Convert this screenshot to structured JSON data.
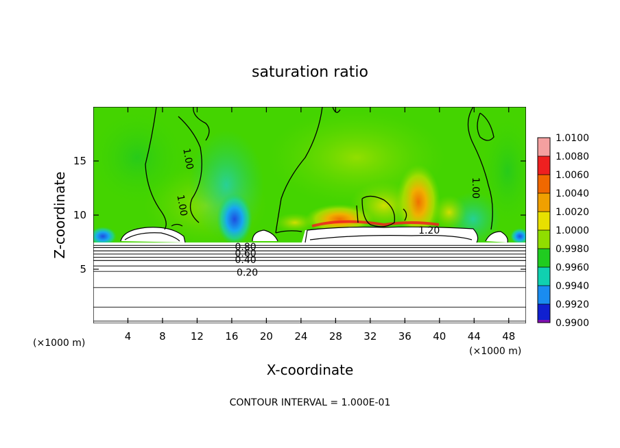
{
  "chart_data": {
    "type": "heatmap",
    "title": "saturation ratio",
    "xlabel": "X-coordinate",
    "ylabel": "Z-coordinate",
    "x_unit_left": "(×1000 m)",
    "x_unit_right": "(×1000 m)",
    "footer": "CONTOUR INTERVAL = 1.000E-01",
    "xlim": [
      0,
      50
    ],
    "ylim": [
      0,
      20
    ],
    "x_ticks": [
      4,
      8,
      12,
      16,
      20,
      24,
      28,
      32,
      36,
      40,
      44,
      48
    ],
    "y_ticks": [
      5,
      10,
      15
    ],
    "colorbar": {
      "labels": [
        "1.0100",
        "1.0080",
        "1.0060",
        "1.0040",
        "1.0020",
        "1.0000",
        "0.9980",
        "0.9960",
        "0.9940",
        "0.9920",
        "0.9900"
      ],
      "colors": [
        "#f4a0a0",
        "#ee2020",
        "#f06800",
        "#f0a000",
        "#e8e000",
        "#90dd00",
        "#20cc20",
        "#10d0b0",
        "#1a8cf0",
        "#1020d0",
        "#8010b0"
      ]
    },
    "field_base_color": "#44d400",
    "contour_labels": [
      {
        "text": "0.20",
        "x": 17.8,
        "y": 4.7
      },
      {
        "text": "0.40",
        "x": 17.6,
        "y": 5.9
      },
      {
        "text": "0.60",
        "x": 17.6,
        "y": 6.5
      },
      {
        "text": "0.80",
        "x": 17.6,
        "y": 7.1
      },
      {
        "text": "1.00",
        "x": 11.0,
        "y": 15.2
      },
      {
        "text": "1.00",
        "x": 10.3,
        "y": 10.9
      },
      {
        "text": "1.00",
        "x": 44.2,
        "y": 12.5
      },
      {
        "text": "1.20",
        "x": 38.8,
        "y": 8.6
      }
    ],
    "flat_contour_z": [
      0.2,
      1.5,
      3.3,
      4.8,
      5.3,
      5.8,
      6.1,
      6.4,
      6.7,
      7.0,
      7.2
    ]
  }
}
